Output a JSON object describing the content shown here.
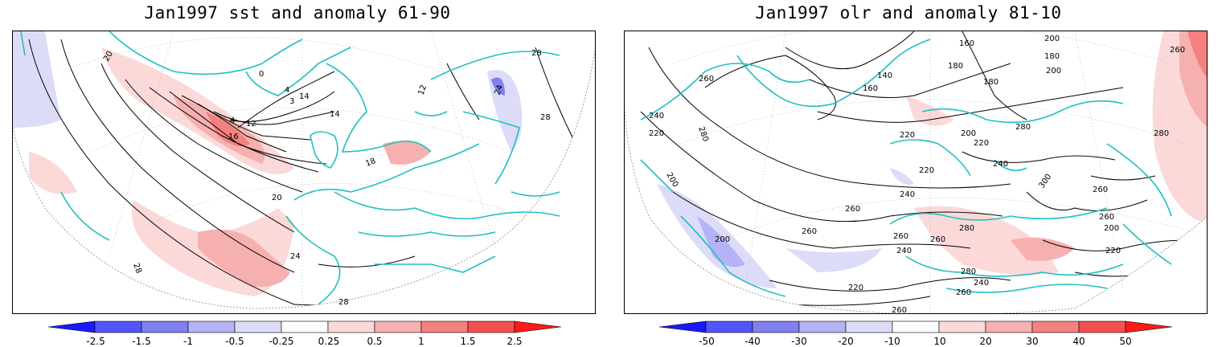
{
  "panels": [
    {
      "title": "Jan1997 sst and anomaly 61-90",
      "colorbar": {
        "ticks": [
          "-2.5",
          "-1.5",
          "-1",
          "-0.5",
          "-0.25",
          "0.25",
          "0.5",
          "1",
          "1.5",
          "2.5"
        ],
        "colors": [
          "#1a1aff",
          "#5555ff",
          "#8080f0",
          "#b3b3f5",
          "#dcdcf8",
          "#ffffff",
          "#fbd9d9",
          "#f7b0b0",
          "#f58080",
          "#f55050",
          "#ff1a1a"
        ]
      },
      "contour_labels": [
        "20",
        "0",
        "4",
        "14",
        "3",
        "4",
        "12",
        "16",
        "18",
        "20",
        "24",
        "28",
        "28",
        "28",
        "24",
        "28",
        "12",
        "14"
      ]
    },
    {
      "title": "Jan1997 olr and anomaly 81-10",
      "colorbar": {
        "ticks": [
          "-50",
          "-40",
          "-30",
          "-20",
          "-10",
          "10",
          "20",
          "30",
          "40",
          "50"
        ],
        "colors": [
          "#1a1aff",
          "#5555ff",
          "#8080f0",
          "#b3b3f5",
          "#dcdcf8",
          "#ffffff",
          "#fbd9d9",
          "#f7b0b0",
          "#f58080",
          "#f55050",
          "#ff1a1a"
        ]
      },
      "contour_labels": [
        "260",
        "240",
        "220",
        "280",
        "200",
        "160",
        "140",
        "180",
        "200",
        "180",
        "160",
        "180",
        "200",
        "260",
        "220",
        "200",
        "220",
        "240",
        "220",
        "240",
        "260",
        "280",
        "280",
        "300",
        "260",
        "260",
        "260",
        "280",
        "260",
        "240",
        "220",
        "240",
        "260",
        "220",
        "260",
        "280",
        "200",
        "200",
        "260"
      ]
    }
  ]
}
